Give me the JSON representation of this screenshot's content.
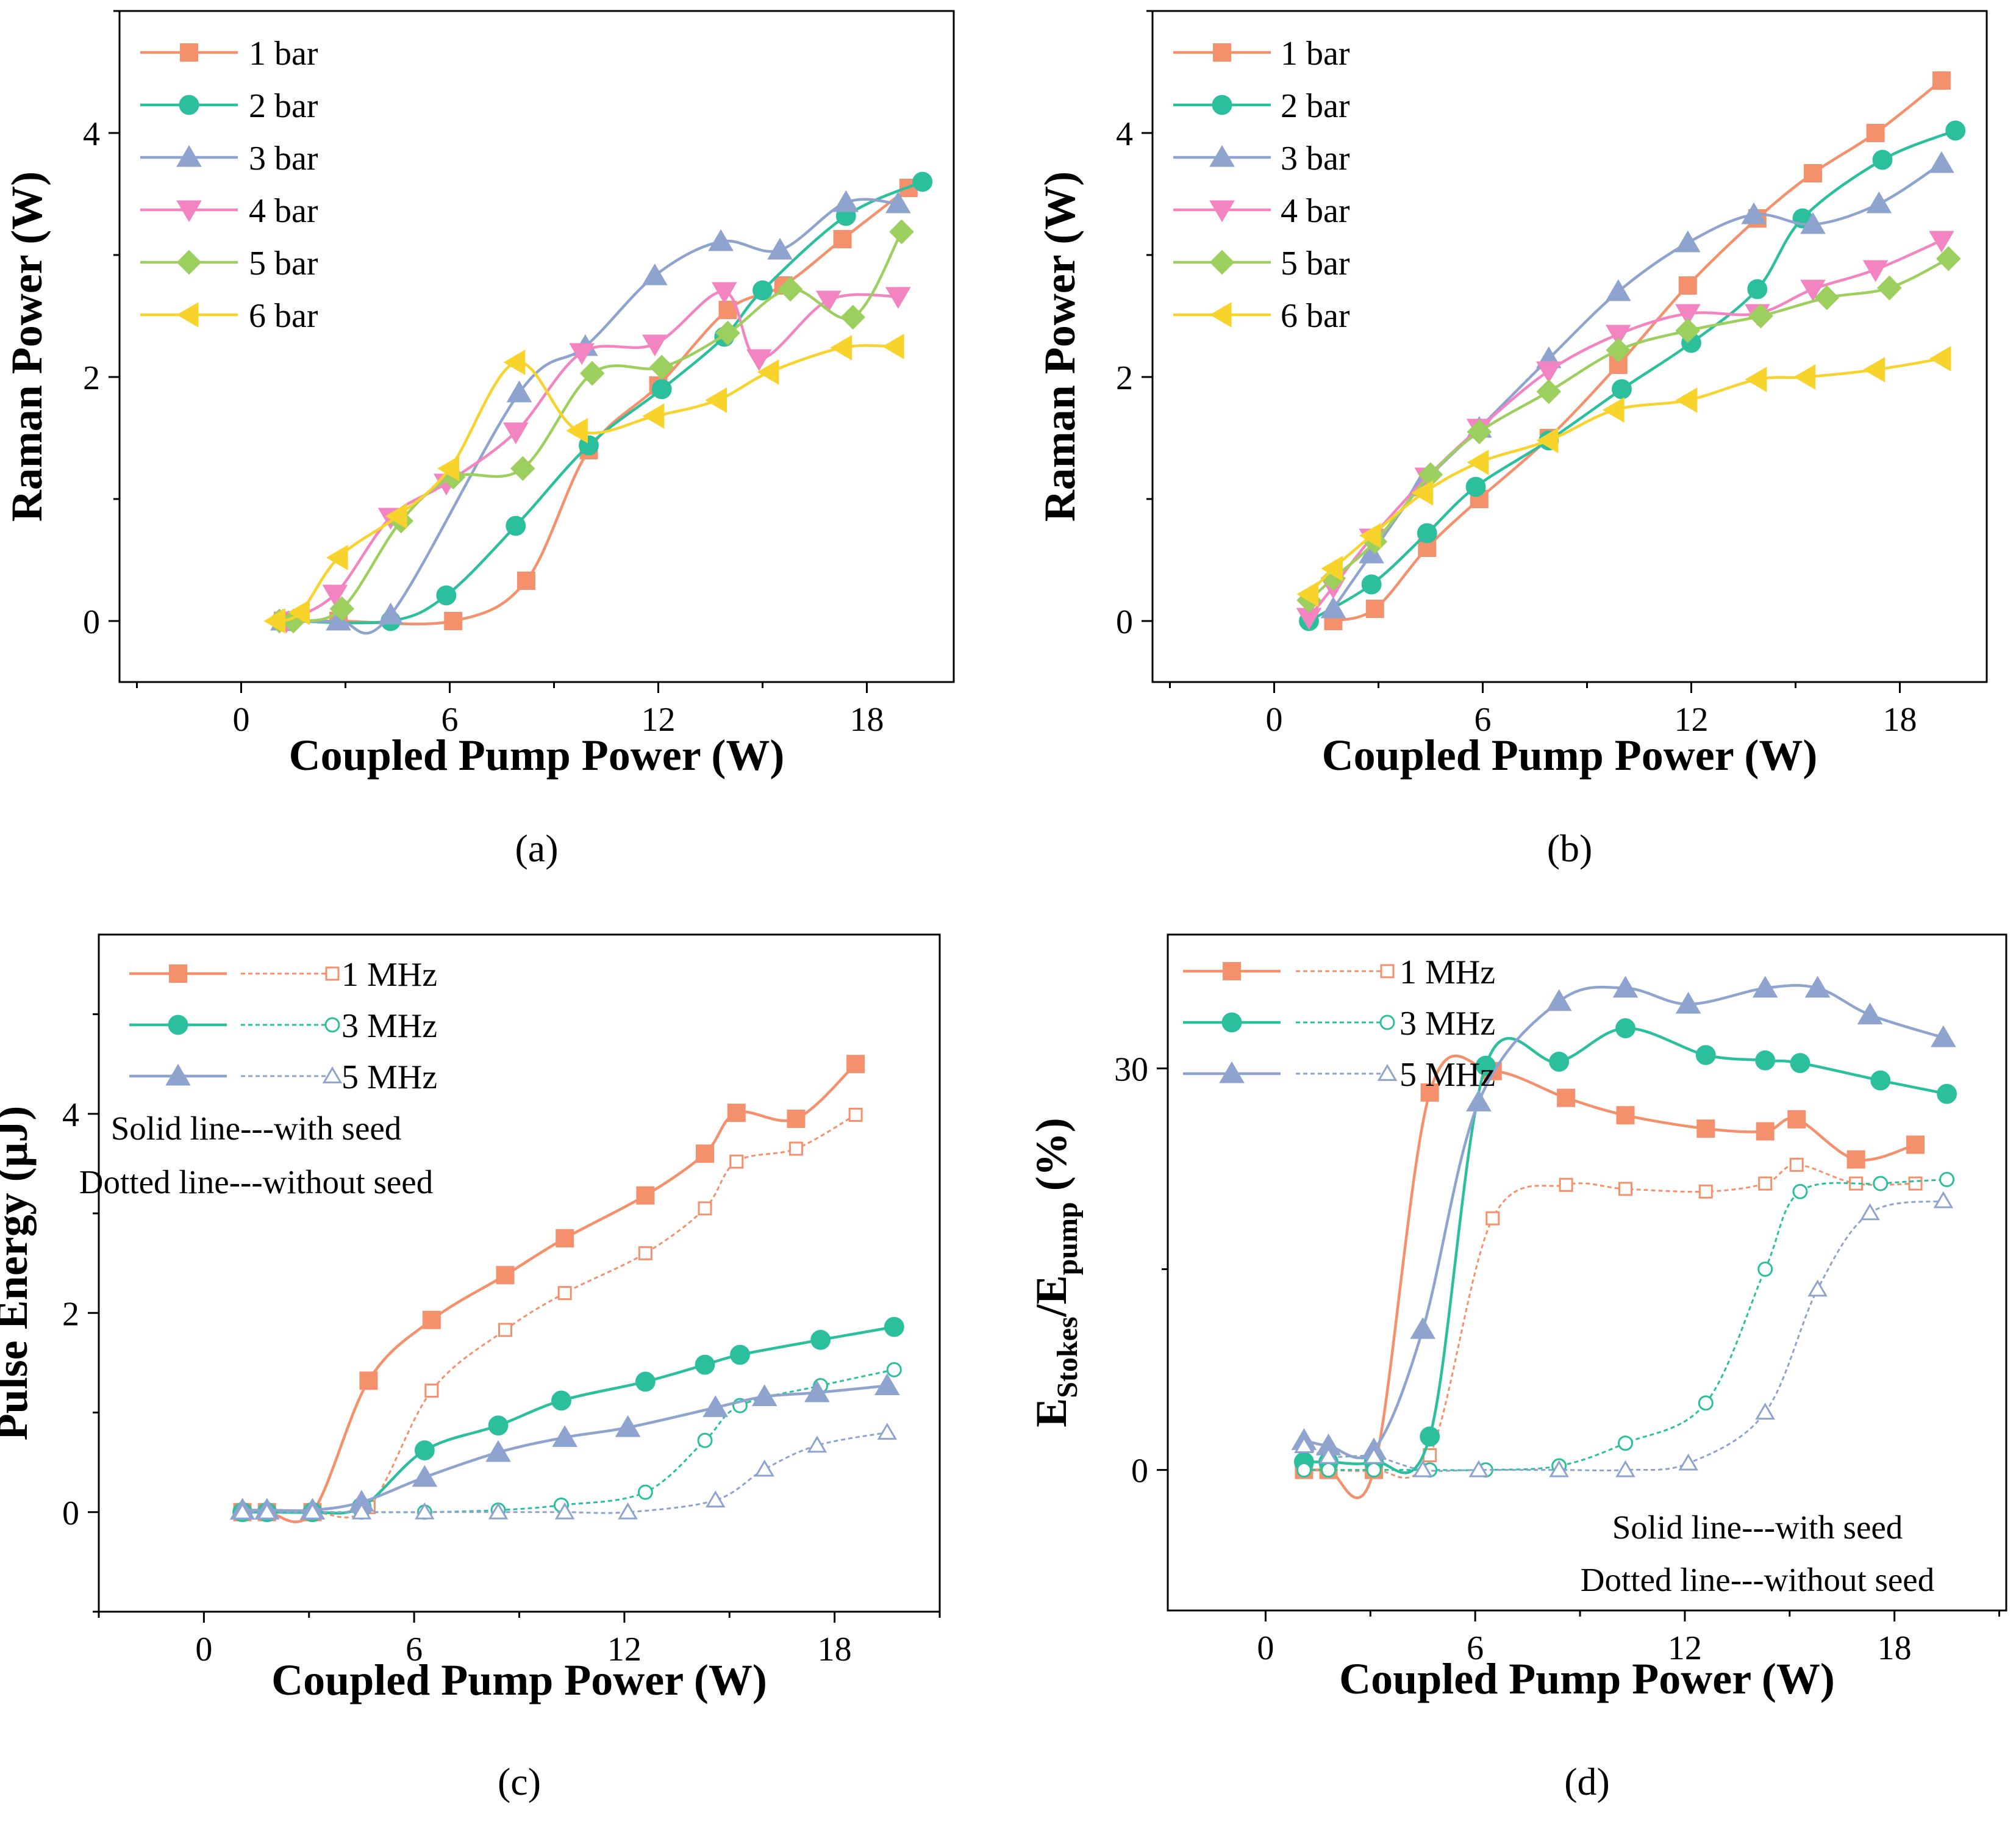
{
  "chart_data": [
    {
      "type": "line",
      "panel_label": "(a)",
      "xlabel": "Coupled Pump Power (W)",
      "ylabel": "Raman Power (W)",
      "xlim": [
        -3.5,
        20.5
      ],
      "ylim": [
        -0.5,
        5.0
      ],
      "xticks": [
        0,
        6,
        12,
        18
      ],
      "yticks": [
        0,
        2,
        4
      ],
      "xtick_labels": [
        "0",
        "6",
        "12",
        "18"
      ],
      "ytick_labels": [
        "0",
        "2",
        "4"
      ],
      "legend": "top-left",
      "series": [
        {
          "name": "1 bar",
          "color": "#f4916c",
          "marker": "square",
          "filled": true,
          "dash": false,
          "x": [
            1.2,
            2.8,
            6.1,
            8.2,
            10.0,
            12.0,
            14.0,
            15.6,
            17.3,
            19.2
          ],
          "y": [
            0,
            0,
            0,
            0.33,
            1.4,
            1.93,
            2.55,
            2.75,
            3.13,
            3.55
          ]
        },
        {
          "name": "2 bar",
          "color": "#2bbf9d",
          "marker": "circle",
          "filled": true,
          "dash": false,
          "x": [
            1.4,
            4.3,
            5.9,
            7.9,
            10.0,
            12.1,
            13.9,
            15.0,
            17.4,
            19.6
          ],
          "y": [
            0,
            0,
            0.21,
            0.78,
            1.44,
            1.9,
            2.33,
            2.71,
            3.32,
            3.6
          ]
        },
        {
          "name": "3 bar",
          "color": "#8fa3cf",
          "marker": "triangle-up",
          "filled": true,
          "dash": false,
          "x": [
            1.2,
            2.8,
            4.3,
            8.0,
            9.9,
            11.9,
            13.8,
            15.5,
            17.4,
            18.9
          ],
          "y": [
            0,
            0,
            0.05,
            1.87,
            2.25,
            2.83,
            3.11,
            3.04,
            3.43,
            3.42
          ]
        },
        {
          "name": "4 bar",
          "color": "#f285c1",
          "marker": "triangle-down",
          "filled": true,
          "dash": false,
          "x": [
            1.3,
            2.7,
            4.3,
            5.9,
            7.9,
            9.8,
            11.9,
            13.9,
            14.9,
            16.9,
            18.9
          ],
          "y": [
            0,
            0.22,
            0.85,
            1.13,
            1.55,
            2.2,
            2.27,
            2.7,
            2.15,
            2.63,
            2.66
          ]
        },
        {
          "name": "5 bar",
          "color": "#9ccf5e",
          "marker": "diamond",
          "filled": true,
          "dash": false,
          "x": [
            1.1,
            1.5,
            2.9,
            4.6,
            6.1,
            8.1,
            10.1,
            12.1,
            14.0,
            15.8,
            17.6,
            19.0
          ],
          "y": [
            0,
            0,
            0.1,
            0.82,
            1.18,
            1.25,
            2.03,
            2.08,
            2.36,
            2.72,
            2.49,
            3.19
          ]
        },
        {
          "name": "6 bar",
          "color": "#f7d32b",
          "marker": "triangle-left",
          "filled": true,
          "dash": false,
          "x": [
            1.0,
            1.7,
            2.8,
            4.5,
            6.0,
            7.9,
            9.7,
            11.9,
            13.7,
            15.2,
            17.3,
            18.8
          ],
          "y": [
            0,
            0.07,
            0.52,
            0.86,
            1.25,
            2.12,
            1.56,
            1.68,
            1.81,
            2.04,
            2.24,
            2.25
          ]
        }
      ]
    },
    {
      "type": "line",
      "panel_label": "(b)",
      "xlabel": "Coupled Pump Power (W)",
      "ylabel": "Raman Power (W)",
      "xlim": [
        -3.5,
        20.5
      ],
      "ylim": [
        -0.5,
        5.0
      ],
      "xticks": [
        0,
        6,
        12,
        18
      ],
      "yticks": [
        0,
        2,
        4
      ],
      "xtick_labels": [
        "0",
        "6",
        "12",
        "18"
      ],
      "ytick_labels": [
        "0",
        "2",
        "4"
      ],
      "legend": "top-left",
      "series": [
        {
          "name": "1 bar",
          "color": "#f4916c",
          "marker": "square",
          "filled": true,
          "dash": false,
          "x": [
            1.7,
            2.9,
            4.4,
            5.9,
            7.9,
            9.9,
            11.9,
            13.9,
            15.5,
            17.3,
            19.2
          ],
          "y": [
            0,
            0.1,
            0.6,
            1.0,
            1.5,
            2.1,
            2.75,
            3.3,
            3.67,
            4.0,
            4.43
          ]
        },
        {
          "name": "2 bar",
          "color": "#2bbf9d",
          "marker": "circle",
          "filled": true,
          "dash": false,
          "x": [
            1.0,
            2.8,
            4.4,
            5.8,
            7.9,
            10.0,
            12.0,
            13.9,
            15.2,
            17.5,
            19.6
          ],
          "y": [
            0,
            0.3,
            0.72,
            1.1,
            1.48,
            1.9,
            2.28,
            2.72,
            3.3,
            3.78,
            4.02
          ]
        },
        {
          "name": "3 bar",
          "color": "#8fa3cf",
          "marker": "triangle-up",
          "filled": true,
          "dash": false,
          "x": [
            1.7,
            2.8,
            4.2,
            5.9,
            7.9,
            9.9,
            11.9,
            13.8,
            15.5,
            17.4,
            19.2
          ],
          "y": [
            0.1,
            0.55,
            1.1,
            1.58,
            2.15,
            2.7,
            3.1,
            3.33,
            3.25,
            3.42,
            3.75
          ]
        },
        {
          "name": "4 bar",
          "color": "#f285c1",
          "marker": "triangle-down",
          "filled": true,
          "dash": false,
          "x": [
            1.0,
            1.7,
            2.8,
            4.4,
            5.9,
            7.9,
            9.9,
            11.9,
            13.9,
            15.5,
            17.3,
            19.2
          ],
          "y": [
            0.03,
            0.28,
            0.68,
            1.18,
            1.58,
            2.05,
            2.35,
            2.52,
            2.52,
            2.72,
            2.88,
            3.12
          ]
        },
        {
          "name": "5 bar",
          "color": "#9ccf5e",
          "marker": "diamond",
          "filled": true,
          "dash": false,
          "x": [
            1.0,
            1.7,
            2.9,
            4.5,
            5.9,
            7.9,
            9.9,
            11.9,
            14.0,
            15.9,
            17.7,
            19.4
          ],
          "y": [
            0.17,
            0.35,
            0.65,
            1.2,
            1.55,
            1.88,
            2.22,
            2.38,
            2.5,
            2.65,
            2.73,
            2.97
          ]
        },
        {
          "name": "6 bar",
          "color": "#f7d32b",
          "marker": "triangle-left",
          "filled": true,
          "dash": false,
          "x": [
            1.0,
            1.7,
            2.8,
            4.3,
            5.9,
            7.9,
            9.8,
            11.9,
            13.9,
            15.3,
            17.3,
            19.2
          ],
          "y": [
            0.22,
            0.43,
            0.7,
            1.05,
            1.3,
            1.48,
            1.73,
            1.81,
            1.98,
            2.0,
            2.06,
            2.15
          ]
        }
      ]
    },
    {
      "type": "line",
      "panel_label": "(c)",
      "xlabel": "Coupled Pump Power (W)",
      "ylabel": "Pulse Energy (μJ)",
      "xlim": [
        -3.0,
        21.0
      ],
      "ylim": [
        -1.0,
        5.8
      ],
      "xticks": [
        0,
        6,
        12,
        18
      ],
      "yticks": [
        0,
        2,
        4
      ],
      "xtick_labels": [
        "0",
        "6",
        "12",
        "18"
      ],
      "ytick_labels": [
        "0",
        "2",
        "4"
      ],
      "legend": "top-left",
      "annotations": [
        "Solid line---with seed",
        "Dotted line---without seed"
      ],
      "series": [
        {
          "name": "1 MHz",
          "color": "#f4916c",
          "marker": "square",
          "filled": true,
          "dash": false,
          "x": [
            1.1,
            1.8,
            3.1,
            4.7,
            6.5,
            8.6,
            10.3,
            12.6,
            14.3,
            15.2,
            16.9,
            18.6
          ],
          "y": [
            0,
            0,
            0,
            1.32,
            1.93,
            2.38,
            2.75,
            3.18,
            3.6,
            4.01,
            3.95,
            4.5
          ]
        },
        {
          "name": "1 MHz",
          "color": "#f4916c",
          "marker": "square",
          "filled": false,
          "dash": true,
          "x": [
            1.1,
            1.8,
            3.1,
            4.7,
            6.5,
            8.6,
            10.3,
            12.6,
            14.3,
            15.2,
            16.9,
            18.6
          ],
          "y": [
            0,
            0,
            0,
            0.05,
            1.22,
            1.83,
            2.2,
            2.6,
            3.05,
            3.52,
            3.65,
            3.99
          ]
        },
        {
          "name": "3 MHz",
          "color": "#2bbf9d",
          "marker": "circle",
          "filled": true,
          "dash": false,
          "x": [
            1.1,
            1.8,
            3.1,
            4.5,
            6.3,
            8.4,
            10.2,
            12.6,
            14.3,
            15.3,
            17.6,
            19.7
          ],
          "y": [
            0,
            0,
            0,
            0.05,
            0.62,
            0.87,
            1.12,
            1.31,
            1.48,
            1.58,
            1.73,
            1.86
          ]
        },
        {
          "name": "3 MHz",
          "color": "#2bbf9d",
          "marker": "circle",
          "filled": false,
          "dash": true,
          "x": [
            1.1,
            1.8,
            3.1,
            4.5,
            6.3,
            8.4,
            10.2,
            12.6,
            14.3,
            15.3,
            17.6,
            19.7
          ],
          "y": [
            0,
            0,
            0,
            0,
            0,
            0.02,
            0.07,
            0.2,
            0.72,
            1.07,
            1.27,
            1.43
          ]
        },
        {
          "name": "5 MHz",
          "color": "#8fa3cf",
          "marker": "triangle-up",
          "filled": true,
          "dash": false,
          "x": [
            1.1,
            1.8,
            3.1,
            4.5,
            6.3,
            8.4,
            10.3,
            12.1,
            14.6,
            16.0,
            17.5,
            19.5
          ],
          "y": [
            0.02,
            0.02,
            0.02,
            0.1,
            0.35,
            0.6,
            0.75,
            0.85,
            1.05,
            1.16,
            1.2,
            1.27
          ]
        },
        {
          "name": "5 MHz",
          "color": "#8fa3cf",
          "marker": "triangle-up",
          "filled": false,
          "dash": true,
          "x": [
            1.1,
            1.8,
            3.1,
            4.5,
            6.3,
            8.4,
            10.3,
            12.1,
            14.6,
            16.0,
            17.5,
            19.5
          ],
          "y": [
            0,
            0,
            0,
            0,
            0,
            0,
            0,
            0,
            0.12,
            0.43,
            0.67,
            0.8
          ]
        }
      ]
    },
    {
      "type": "line",
      "panel_label": "(d)",
      "xlabel": "Coupled Pump Power (W)",
      "ylabel": "E_Stokes/E_pump (%)",
      "ylabel_parts": [
        "E",
        "Stokes",
        "/E",
        "pump",
        " (%)"
      ],
      "xlim": [
        -2.8,
        21.2
      ],
      "ylim": [
        -10.5,
        40.0
      ],
      "xticks": [
        0,
        6,
        12,
        18
      ],
      "yticks": [
        0,
        30
      ],
      "xtick_labels": [
        "0",
        "6",
        "12",
        "18"
      ],
      "ytick_labels": [
        "0",
        "30"
      ],
      "legend": "top-left",
      "annotations": [
        "Solid line---with seed",
        "Dotted line---without seed"
      ],
      "series": [
        {
          "name": "1 MHz",
          "color": "#f4916c",
          "marker": "square",
          "filled": true,
          "dash": false,
          "x": [
            1.1,
            1.8,
            3.1,
            4.7,
            6.5,
            8.6,
            10.3,
            12.6,
            14.3,
            15.2,
            16.9,
            18.6
          ],
          "y": [
            0,
            0,
            0,
            28.2,
            29.8,
            27.8,
            26.5,
            25.5,
            25.3,
            26.2,
            23.2,
            24.3
          ]
        },
        {
          "name": "1 MHz",
          "color": "#f4916c",
          "marker": "square",
          "filled": false,
          "dash": true,
          "x": [
            1.1,
            1.8,
            3.1,
            4.7,
            6.5,
            8.6,
            10.3,
            12.6,
            14.3,
            15.2,
            16.9,
            18.6
          ],
          "y": [
            0,
            0,
            0,
            1.1,
            18.8,
            21.3,
            21.0,
            20.8,
            21.4,
            22.8,
            21.4,
            21.4
          ]
        },
        {
          "name": "3 MHz",
          "color": "#2bbf9d",
          "marker": "circle",
          "filled": true,
          "dash": false,
          "x": [
            1.1,
            1.8,
            3.1,
            4.7,
            6.3,
            8.4,
            10.3,
            12.6,
            14.3,
            15.3,
            17.6,
            19.5
          ],
          "y": [
            0.6,
            0.6,
            0.6,
            2.5,
            30.2,
            30.5,
            33.0,
            31.0,
            30.6,
            30.4,
            29.1,
            28.1
          ]
        },
        {
          "name": "3 MHz",
          "color": "#2bbf9d",
          "marker": "circle",
          "filled": false,
          "dash": true,
          "x": [
            1.1,
            1.8,
            3.1,
            4.7,
            6.3,
            8.4,
            10.3,
            12.6,
            14.3,
            15.3,
            17.6,
            19.5
          ],
          "y": [
            0,
            0,
            0,
            0,
            0,
            0.3,
            2.0,
            5.0,
            15.0,
            20.8,
            21.4,
            21.7
          ]
        },
        {
          "name": "5 MHz",
          "color": "#8fa3cf",
          "marker": "triangle-up",
          "filled": true,
          "dash": false,
          "x": [
            1.1,
            1.8,
            3.1,
            4.5,
            6.1,
            8.4,
            10.3,
            12.1,
            14.3,
            15.8,
            17.3,
            19.4
          ],
          "y": [
            2.2,
            1.8,
            1.5,
            10.5,
            27.5,
            35.0,
            36.0,
            34.8,
            36.0,
            36.0,
            34.0,
            32.3
          ]
        },
        {
          "name": "5 MHz",
          "color": "#8fa3cf",
          "marker": "triangle-up",
          "filled": false,
          "dash": true,
          "x": [
            1.1,
            1.8,
            3.1,
            4.5,
            6.1,
            8.4,
            10.3,
            12.1,
            14.3,
            15.8,
            17.3,
            19.4
          ],
          "y": [
            1.8,
            1.0,
            1.0,
            0,
            0,
            0,
            0,
            0.5,
            4.3,
            13.5,
            19.2,
            20.1
          ]
        }
      ]
    }
  ]
}
